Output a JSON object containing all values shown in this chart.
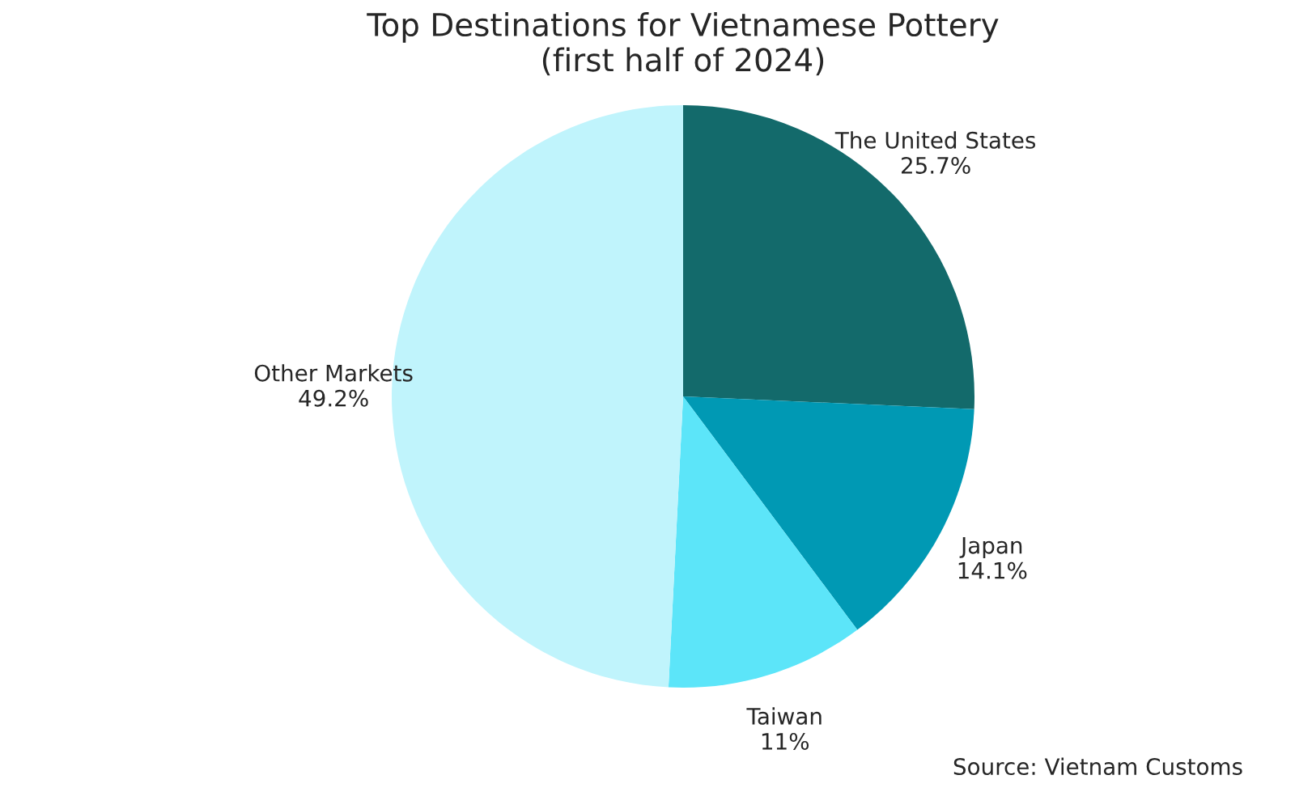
{
  "chart_data": {
    "type": "pie",
    "title": "Top Destinations for Vietnamese Pottery\n(first half of 2024)",
    "categories": [
      "The United States",
      "Japan",
      "Taiwan",
      "Other Markets"
    ],
    "values": [
      25.7,
      14.1,
      11,
      49.2
    ],
    "value_labels": [
      "25.7%",
      "14.1%",
      "11%",
      "49.2%"
    ],
    "colors": [
      "#136a6b",
      "#0099b4",
      "#5ce5f9",
      "#c0f4fc"
    ],
    "annotations": [
      "Source: Vietnam Customs"
    ],
    "legend": false
  }
}
